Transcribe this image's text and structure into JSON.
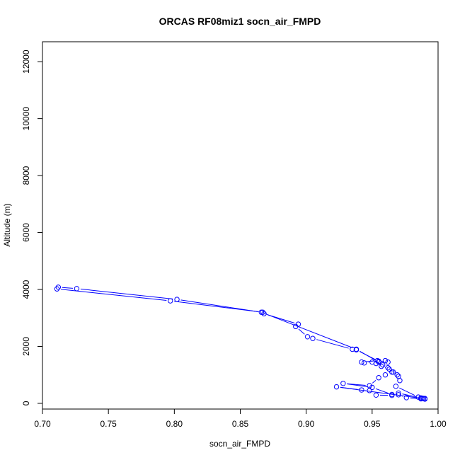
{
  "chart_data": {
    "type": "line",
    "title": "ORCAS RF08miz1 socn_air_FMPD",
    "xlabel": "socn_air_FMPD",
    "ylabel": "Altitude (m)",
    "xlim": [
      0.7,
      1.0
    ],
    "ylim": [
      -200,
      12700
    ],
    "x_ticks": [
      0.7,
      0.75,
      0.8,
      0.85,
      0.9,
      0.95,
      1.0
    ],
    "x_tick_labels": [
      "0.70",
      "0.75",
      "0.80",
      "0.85",
      "0.90",
      "0.95",
      "1.00"
    ],
    "y_ticks": [
      0,
      2000,
      4000,
      6000,
      8000,
      10000,
      12000
    ],
    "y_tick_labels": [
      "0",
      "2000",
      "4000",
      "6000",
      "8000",
      "10000",
      "12000"
    ],
    "grid": false,
    "legend": "none",
    "color": "#0000ff",
    "series": [
      {
        "x": [
          0.99,
          0.988,
          0.987,
          0.976,
          0.97,
          0.965,
          0.953,
          0.948,
          0.942,
          0.923,
          0.99,
          0.989,
          0.987,
          0.97,
          0.965,
          0.95,
          0.928,
          0.948,
          0.955,
          0.96,
          0.965,
          0.969,
          0.963,
          0.957,
          0.953,
          0.95,
          0.944,
          0.942,
          0.954,
          0.962,
          0.96,
          0.955,
          0.938,
          0.935,
          0.905,
          0.901,
          0.892,
          0.894,
          0.868,
          0.867,
          0.797,
          0.711,
          0.712,
          0.726,
          0.802,
          0.866,
          0.938,
          0.955,
          0.958,
          0.962,
          0.966,
          0.97,
          0.971,
          0.968,
          0.985,
          0.99
        ],
        "y": [
          150,
          180,
          160,
          200,
          300,
          280,
          290,
          450,
          470,
          580,
          160,
          170,
          190,
          360,
          310,
          560,
          700,
          620,
          900,
          1000,
          1100,
          1000,
          1200,
          1300,
          1400,
          1450,
          1420,
          1450,
          1500,
          1450,
          1500,
          1480,
          1880,
          1900,
          2280,
          2340,
          2700,
          2780,
          3150,
          3200,
          3600,
          4020,
          4080,
          4030,
          3650,
          3200,
          1900,
          1450,
          1350,
          1250,
          1100,
          950,
          800,
          600,
          220,
          170
        ]
      }
    ]
  }
}
